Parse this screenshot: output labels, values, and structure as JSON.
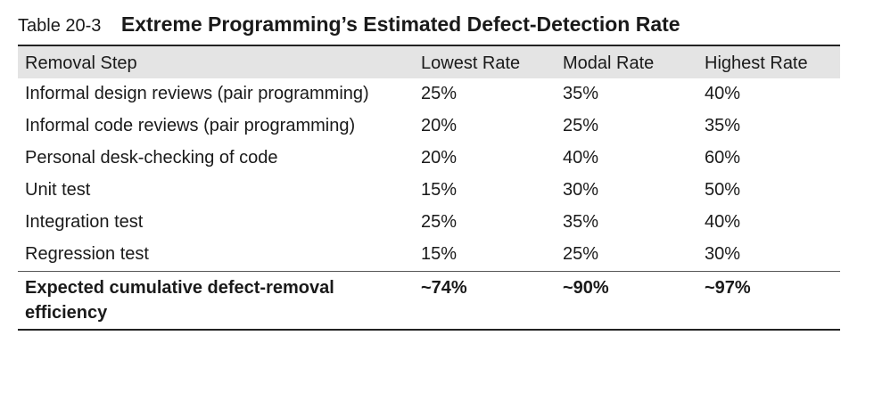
{
  "caption": {
    "number": "Table 20-3",
    "title": "Extreme Programming’s Estimated Defect-Detection Rate"
  },
  "table": {
    "columns": [
      "Removal Step",
      "Lowest Rate",
      "Modal Rate",
      "Highest Rate"
    ],
    "rows": [
      {
        "step": "Informal design reviews (pair programming)",
        "lowest": "25%",
        "modal": "35%",
        "highest": "40%"
      },
      {
        "step": "Informal code reviews (pair programming)",
        "lowest": "20%",
        "modal": "25%",
        "highest": "35%"
      },
      {
        "step": "Personal desk-checking of code",
        "lowest": "20%",
        "modal": "40%",
        "highest": "60%"
      },
      {
        "step": "Unit test",
        "lowest": "15%",
        "modal": "30%",
        "highest": "50%"
      },
      {
        "step": "Integration test",
        "lowest": "25%",
        "modal": "35%",
        "highest": "40%"
      },
      {
        "step": "Regression test",
        "lowest": "15%",
        "modal": "25%",
        "highest": "30%"
      }
    ],
    "footer": {
      "step": "Expected cumulative defect-removal efficiency",
      "lowest": "~74%",
      "modal": "~90%",
      "highest": "~97%"
    }
  }
}
